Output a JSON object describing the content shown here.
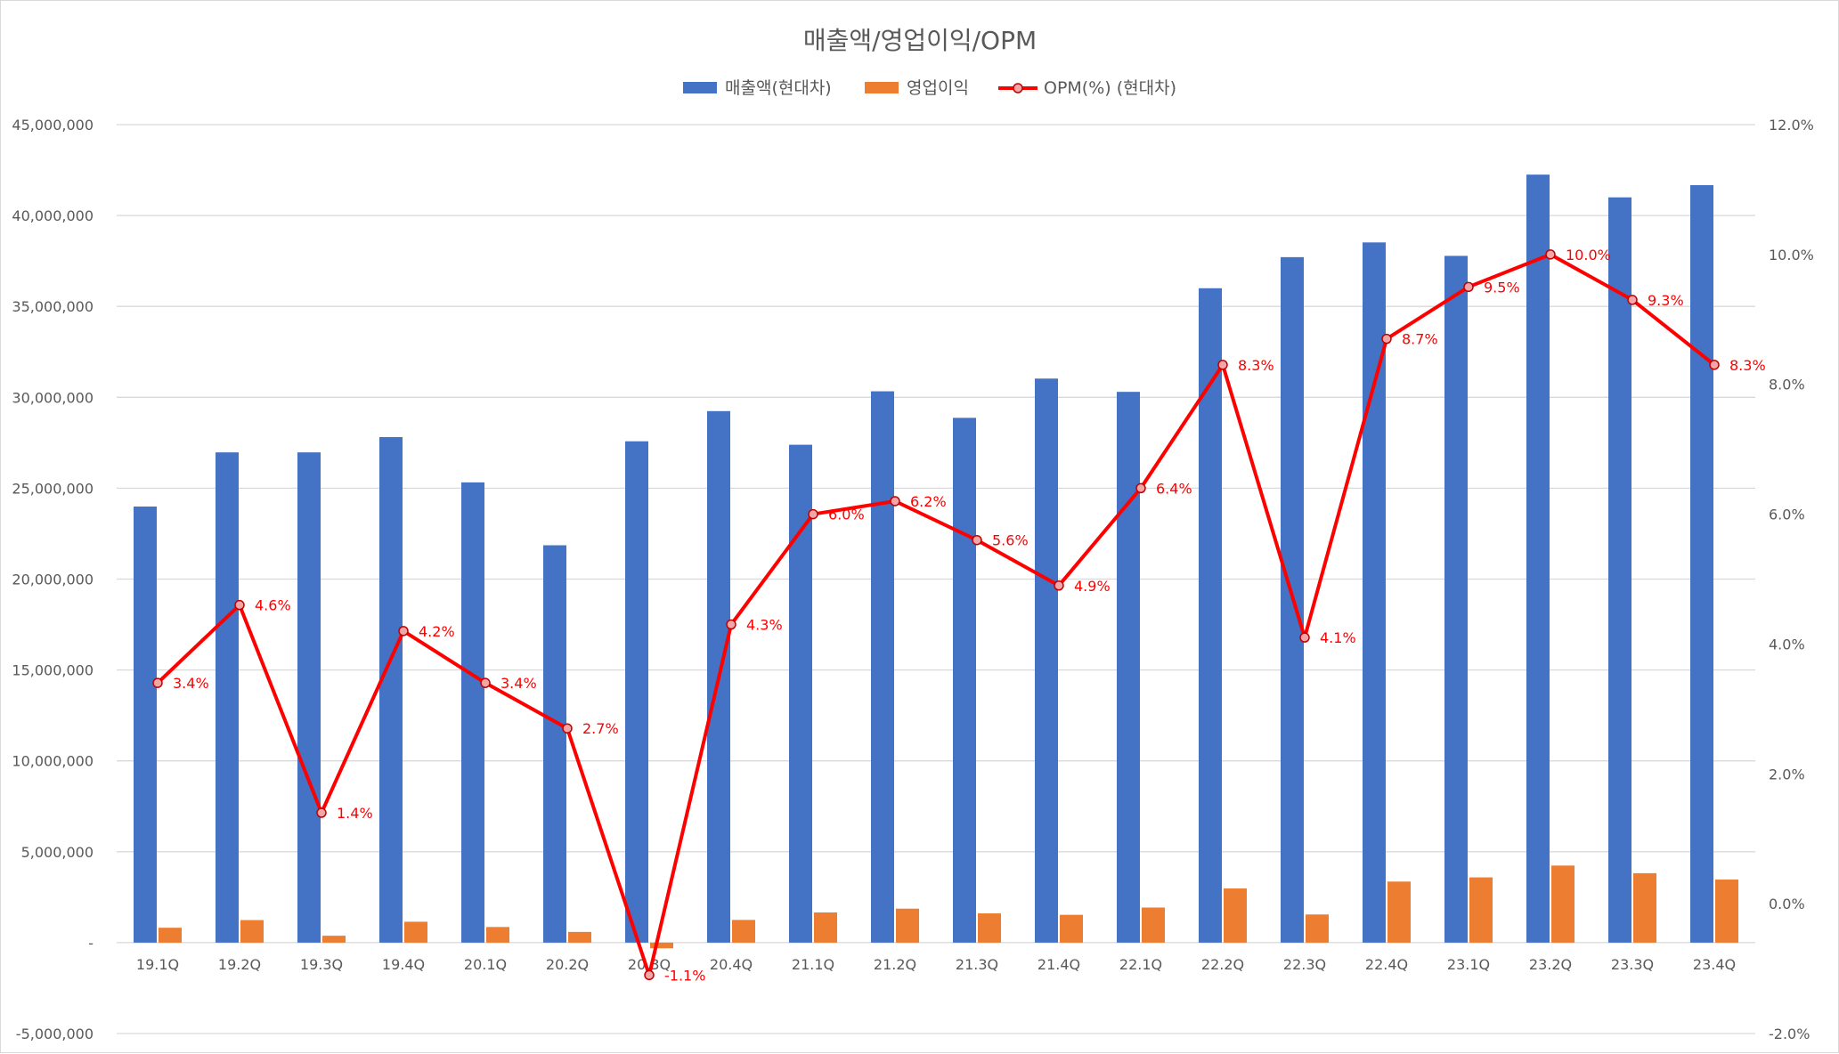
{
  "chart_data": {
    "type": "bar",
    "title": "매출액/영업이익/OPM",
    "categories": [
      "19.1Q",
      "19.2Q",
      "19.3Q",
      "19.4Q",
      "20.1Q",
      "20.2Q",
      "20.3Q",
      "20.4Q",
      "21.1Q",
      "21.2Q",
      "21.3Q",
      "21.4Q",
      "22.1Q",
      "22.2Q",
      "22.3Q",
      "22.4Q",
      "23.1Q",
      "23.2Q",
      "23.3Q",
      "23.4Q"
    ],
    "series": [
      {
        "name": "매출액(현대차)",
        "type": "bar",
        "axis": "left",
        "color": "#4472c4",
        "values": [
          23990000,
          26970000,
          26970000,
          27810000,
          25320000,
          21860000,
          27580000,
          29240000,
          27390000,
          30330000,
          28870000,
          31030000,
          30300000,
          36000000,
          37710000,
          38520000,
          37780000,
          42250000,
          41000000,
          41670000
        ]
      },
      {
        "name": "영업이익",
        "type": "bar",
        "axis": "left",
        "color": "#ed7d31",
        "values": [
          820000,
          1240000,
          380000,
          1150000,
          860000,
          590000,
          -310000,
          1250000,
          1660000,
          1870000,
          1610000,
          1530000,
          1930000,
          2980000,
          1550000,
          3360000,
          3590000,
          4240000,
          3820000,
          3470000
        ]
      },
      {
        "name": "OPM(%) (현대차)",
        "type": "line",
        "axis": "right",
        "color": "#ff0000",
        "values": [
          3.4,
          4.6,
          1.4,
          4.2,
          3.4,
          2.7,
          -1.1,
          4.3,
          6.0,
          6.2,
          5.6,
          4.9,
          6.4,
          8.3,
          4.1,
          8.7,
          9.5,
          10.0,
          9.3,
          8.3
        ],
        "labels": [
          "3.4%",
          "4.6%",
          "1.4%",
          "4.2%",
          "3.4%",
          "2.7%",
          "-1.1%",
          "4.3%",
          "6.0%",
          "6.2%",
          "5.6%",
          "4.9%",
          "6.4%",
          "8.3%",
          "4.1%",
          "8.7%",
          "9.5%",
          "10.0%",
          "9.3%",
          "8.3%"
        ]
      }
    ],
    "y_left": {
      "range": [
        -5000000,
        45000000
      ],
      "ticks": [
        45000000,
        40000000,
        35000000,
        30000000,
        25000000,
        20000000,
        15000000,
        10000000,
        5000000,
        0,
        -5000000
      ],
      "tick_labels": [
        "45,000,000",
        "40,000,000",
        "35,000,000",
        "30,000,000",
        "25,000,000",
        "20,000,000",
        "15,000,000",
        "10,000,000",
        "5,000,000",
        "-",
        "-5,000,000"
      ]
    },
    "y_right": {
      "range": [
        -2.0,
        12.0
      ],
      "ticks": [
        12.0,
        10.0,
        8.0,
        6.0,
        4.0,
        2.0,
        0.0,
        -2.0
      ],
      "tick_labels": [
        "12.0%",
        "10.0%",
        "8.0%",
        "6.0%",
        "4.0%",
        "2.0%",
        "0.0%",
        "-2.0%"
      ]
    },
    "grid": true,
    "legend_position": "top"
  }
}
